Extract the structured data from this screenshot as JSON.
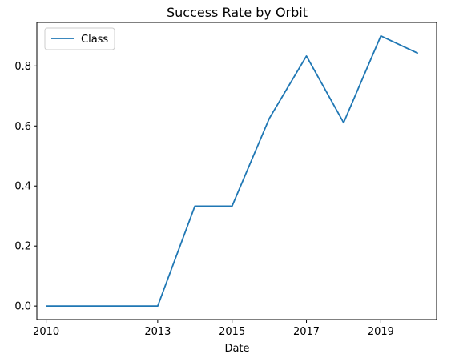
{
  "chart_data": {
    "type": "line",
    "title": "Success Rate by Orbit",
    "xlabel": "Date",
    "ylabel": "",
    "x": [
      2010,
      2012,
      2013,
      2014,
      2015,
      2016,
      2017,
      2018,
      2019,
      2020
    ],
    "series": [
      {
        "name": "Class",
        "color": "#1f77b4",
        "values": [
          0.0,
          0.0,
          0.0,
          0.333,
          0.333,
          0.625,
          0.833,
          0.611,
          0.9,
          0.842
        ]
      }
    ],
    "xticks": [
      {
        "value": 2010,
        "label": "2010"
      },
      {
        "value": 2013,
        "label": "2013"
      },
      {
        "value": 2015,
        "label": "2015"
      },
      {
        "value": 2017,
        "label": "2017"
      },
      {
        "value": 2019,
        "label": "2019"
      }
    ],
    "yticks": [
      {
        "value": 0.0,
        "label": "0.0"
      },
      {
        "value": 0.2,
        "label": "0.2"
      },
      {
        "value": 0.4,
        "label": "0.4"
      },
      {
        "value": 0.6,
        "label": "0.6"
      },
      {
        "value": 0.8,
        "label": "0.8"
      }
    ],
    "xlim": [
      2009.75,
      2020.5
    ],
    "ylim": [
      -0.045,
      0.945
    ],
    "grid": false,
    "legend_position": "top-left"
  }
}
